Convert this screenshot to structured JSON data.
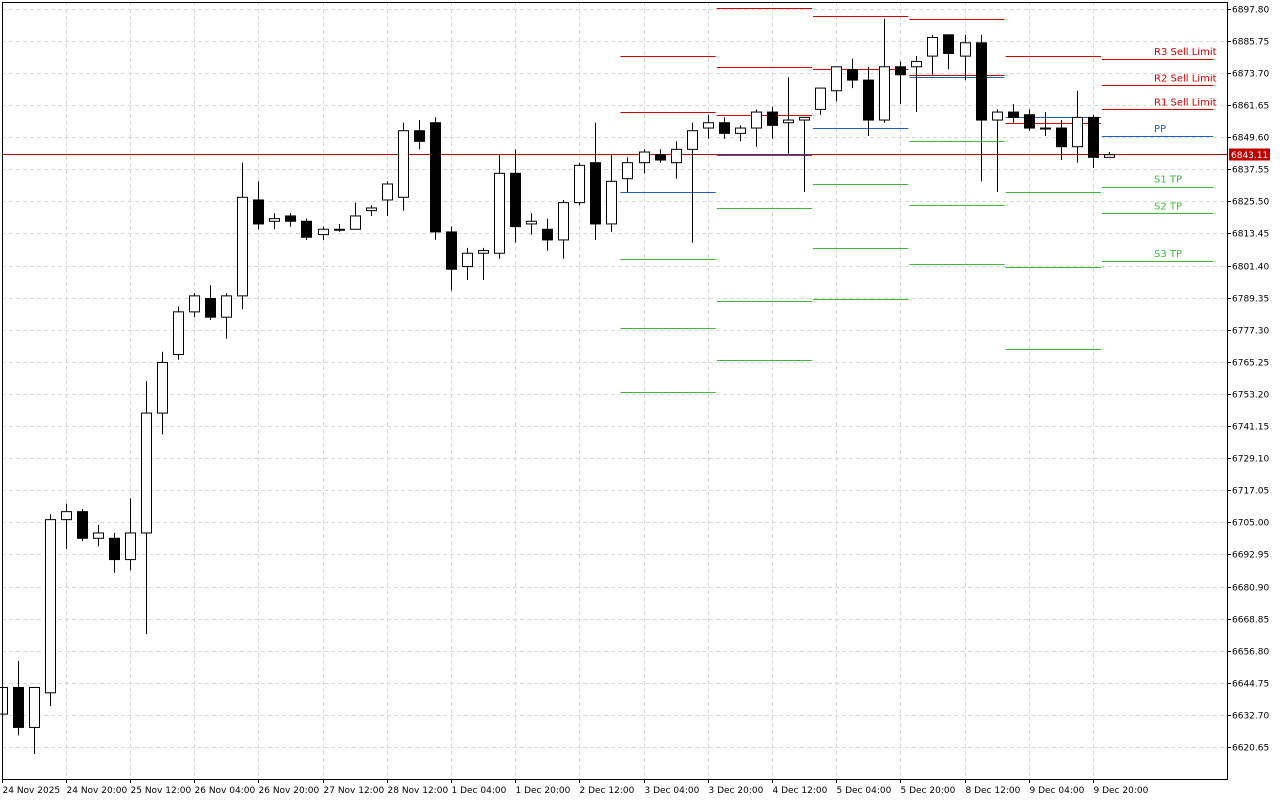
{
  "chart_data": {
    "type": "candlestick",
    "grid": true,
    "ylim": [
      6614.6,
      6903.9
    ],
    "y_ticks": [
      "6897.80",
      "6885.75",
      "6873.70",
      "6861.65",
      "6849.60",
      "6837.55",
      "6825.50",
      "6813.45",
      "6801.40",
      "6789.35",
      "6777.30",
      "6765.25",
      "6753.20",
      "6741.15",
      "6729.10",
      "6717.05",
      "6705.00",
      "6692.95",
      "6680.90",
      "6668.85",
      "6656.80",
      "6644.75",
      "6632.70",
      "6620.65"
    ],
    "x_ticks": [
      "24 Nov 2025",
      "24 Nov 20:00",
      "25 Nov 12:00",
      "26 Nov 04:00",
      "26 Nov 20:00",
      "27 Nov 12:00",
      "28 Nov 12:00",
      "1 Dec 04:00",
      "1 Dec 20:00",
      "2 Dec 12:00",
      "3 Dec 04:00",
      "3 Dec 20:00",
      "4 Dec 12:00",
      "5 Dec 04:00",
      "5 Dec 20:00",
      "8 Dec 12:00",
      "9 Dec 04:00",
      "9 Dec 20:00"
    ],
    "current_price": {
      "value": 6843.11,
      "label": "6843.11",
      "color": "#c00000"
    },
    "colors": {
      "bull_body": "#ffffff",
      "bear_body": "#000000",
      "wick": "#000000",
      "resistance": "#d00000",
      "pivot": "#1f5fbf",
      "support": "#3cb83c"
    },
    "candles": [
      {
        "o": 6633.0,
        "h": 6648.0,
        "l": 6626.0,
        "c": 6643.0
      },
      {
        "o": 6643.0,
        "h": 6653.0,
        "l": 6625.0,
        "c": 6628.0
      },
      {
        "o": 6628.0,
        "h": 6642.0,
        "l": 6618.0,
        "c": 6643.0
      },
      {
        "o": 6641.0,
        "h": 6708.0,
        "l": 6636.0,
        "c": 6706.0
      },
      {
        "o": 6706.0,
        "h": 6712.0,
        "l": 6695.0,
        "c": 6709.0
      },
      {
        "o": 6709.0,
        "h": 6710.0,
        "l": 6698.0,
        "c": 6699.0
      },
      {
        "o": 6699.0,
        "h": 6704.0,
        "l": 6696.0,
        "c": 6701.0
      },
      {
        "o": 6699.0,
        "h": 6701.0,
        "l": 6686.0,
        "c": 6691.0
      },
      {
        "o": 6691.0,
        "h": 6714.0,
        "l": 6687.0,
        "c": 6701.0
      },
      {
        "o": 6701.0,
        "h": 6758.0,
        "l": 6663.0,
        "c": 6746.0
      },
      {
        "o": 6746.0,
        "h": 6769.0,
        "l": 6738.0,
        "c": 6765.0
      },
      {
        "o": 6768.0,
        "h": 6786.0,
        "l": 6766.0,
        "c": 6784.0
      },
      {
        "o": 6784.0,
        "h": 6791.0,
        "l": 6782.0,
        "c": 6790.0
      },
      {
        "o": 6789.0,
        "h": 6794.0,
        "l": 6781.0,
        "c": 6782.0
      },
      {
        "o": 6782.0,
        "h": 6791.0,
        "l": 6774.0,
        "c": 6790.0
      },
      {
        "o": 6790.0,
        "h": 6840.0,
        "l": 6785.0,
        "c": 6827.0
      },
      {
        "o": 6826.0,
        "h": 6833.0,
        "l": 6815.0,
        "c": 6817.0
      },
      {
        "o": 6818.0,
        "h": 6821.0,
        "l": 6815.0,
        "c": 6819.0
      },
      {
        "o": 6820.0,
        "h": 6821.0,
        "l": 6816.0,
        "c": 6818.0
      },
      {
        "o": 6818.0,
        "h": 6819.0,
        "l": 6811.0,
        "c": 6812.0
      },
      {
        "o": 6813.0,
        "h": 6816.0,
        "l": 6811.0,
        "c": 6815.0
      },
      {
        "o": 6815.0,
        "h": 6817.0,
        "l": 6814.0,
        "c": 6815.0
      },
      {
        "o": 6815.0,
        "h": 6825.0,
        "l": 6815.0,
        "c": 6820.0
      },
      {
        "o": 6822.0,
        "h": 6824.0,
        "l": 6820.0,
        "c": 6823.0
      },
      {
        "o": 6826.0,
        "h": 6833.0,
        "l": 6820.0,
        "c": 6832.0
      },
      {
        "o": 6827.0,
        "h": 6855.0,
        "l": 6822.0,
        "c": 6852.0
      },
      {
        "o": 6852.0,
        "h": 6856.0,
        "l": 6845.0,
        "c": 6848.0
      },
      {
        "o": 6855.0,
        "h": 6857.0,
        "l": 6811.0,
        "c": 6814.0
      },
      {
        "o": 6814.0,
        "h": 6816.0,
        "l": 6792.0,
        "c": 6800.0
      },
      {
        "o": 6801.0,
        "h": 6808.0,
        "l": 6796.0,
        "c": 6806.0
      },
      {
        "o": 6806.0,
        "h": 6808.0,
        "l": 6796.0,
        "c": 6807.0
      },
      {
        "o": 6806.0,
        "h": 6843.0,
        "l": 6804.0,
        "c": 6836.0
      },
      {
        "o": 6836.0,
        "h": 6845.0,
        "l": 6810.0,
        "c": 6816.0
      },
      {
        "o": 6817.0,
        "h": 6821.0,
        "l": 6813.0,
        "c": 6818.0
      },
      {
        "o": 6815.0,
        "h": 6819.0,
        "l": 6807.0,
        "c": 6811.0
      },
      {
        "o": 6811.0,
        "h": 6826.0,
        "l": 6804.0,
        "c": 6825.0
      },
      {
        "o": 6825.0,
        "h": 6840.0,
        "l": 6824.0,
        "c": 6839.0
      },
      {
        "o": 6840.0,
        "h": 6855.0,
        "l": 6811.0,
        "c": 6817.0
      },
      {
        "o": 6817.0,
        "h": 6843.0,
        "l": 6814.0,
        "c": 6833.0
      },
      {
        "o": 6834.0,
        "h": 6842.0,
        "l": 6829.0,
        "c": 6840.0
      },
      {
        "o": 6840.0,
        "h": 6845.0,
        "l": 6836.0,
        "c": 6844.0
      },
      {
        "o": 6843.0,
        "h": 6845.0,
        "l": 6840.0,
        "c": 6841.0
      },
      {
        "o": 6840.0,
        "h": 6848.0,
        "l": 6834.0,
        "c": 6845.0
      },
      {
        "o": 6845.0,
        "h": 6855.0,
        "l": 6810.0,
        "c": 6852.0
      },
      {
        "o": 6853.0,
        "h": 6858.0,
        "l": 6849.0,
        "c": 6855.0
      },
      {
        "o": 6855.0,
        "h": 6857.0,
        "l": 6849.0,
        "c": 6851.0
      },
      {
        "o": 6851.0,
        "h": 6854.0,
        "l": 6848.0,
        "c": 6853.0
      },
      {
        "o": 6853.0,
        "h": 6860.0,
        "l": 6846.0,
        "c": 6859.0
      },
      {
        "o": 6859.0,
        "h": 6861.0,
        "l": 6849.0,
        "c": 6854.0
      },
      {
        "o": 6855.0,
        "h": 6872.0,
        "l": 6843.0,
        "c": 6856.0
      },
      {
        "o": 6856.0,
        "h": 6857.0,
        "l": 6829.0,
        "c": 6857.0
      },
      {
        "o": 6860.0,
        "h": 6868.0,
        "l": 6858.0,
        "c": 6868.0
      },
      {
        "o": 6867.0,
        "h": 6875.0,
        "l": 6863.0,
        "c": 6876.0
      },
      {
        "o": 6875.0,
        "h": 6879.0,
        "l": 6868.0,
        "c": 6871.0
      },
      {
        "o": 6871.0,
        "h": 6876.0,
        "l": 6850.0,
        "c": 6856.0
      },
      {
        "o": 6856.0,
        "h": 6894.0,
        "l": 6855.0,
        "c": 6876.0
      },
      {
        "o": 6876.0,
        "h": 6878.0,
        "l": 6862.0,
        "c": 6873.0
      },
      {
        "o": 6876.0,
        "h": 6880.0,
        "l": 6859.0,
        "c": 6878.0
      },
      {
        "o": 6880.0,
        "h": 6888.0,
        "l": 6873.0,
        "c": 6887.0
      },
      {
        "o": 6888.0,
        "h": 6888.0,
        "l": 6875.0,
        "c": 6881.0
      },
      {
        "o": 6880.0,
        "h": 6888.0,
        "l": 6871.0,
        "c": 6885.0
      },
      {
        "o": 6885.0,
        "h": 6888.0,
        "l": 6833.0,
        "c": 6856.0
      },
      {
        "o": 6856.0,
        "h": 6860.0,
        "l": 6829.0,
        "c": 6859.0
      },
      {
        "o": 6859.0,
        "h": 6862.0,
        "l": 6855.0,
        "c": 6857.0
      },
      {
        "o": 6858.0,
        "h": 6860.0,
        "l": 6852.0,
        "c": 6853.0
      },
      {
        "o": 6853.0,
        "h": 6859.0,
        "l": 6850.0,
        "c": 6853.0
      },
      {
        "o": 6853.0,
        "h": 6856.0,
        "l": 6841.0,
        "c": 6846.0
      },
      {
        "o": 6846.0,
        "h": 6867.0,
        "l": 6840.0,
        "c": 6857.0
      },
      {
        "o": 6857.0,
        "h": 6858.0,
        "l": 6838.0,
        "c": 6842.0
      },
      {
        "o": 6842.0,
        "h": 6844.0,
        "l": 6842.0,
        "c": 6843.0
      }
    ],
    "levels": [
      {
        "from": 39,
        "to": 44,
        "r3": 6880,
        "r2": 6859,
        "pp": 6829,
        "s1": 6804,
        "s2": 6778,
        "s3": 6754
      },
      {
        "from": 45,
        "to": 50,
        "r3": 6898,
        "r2": 6876,
        "r1": 6858,
        "pp": 6843,
        "s1": 6823,
        "s2": 6788,
        "s3": 6766
      },
      {
        "from": 51,
        "to": 56,
        "r3": 6895,
        "r2": 6875,
        "pp": 6853,
        "s1": 6832,
        "s2": 6808,
        "s3": 6789
      },
      {
        "from": 57,
        "to": 62,
        "r3": 6894,
        "r2": 6873,
        "pp": 6872,
        "s1": 6848,
        "s2": 6824,
        "s3": 6802
      },
      {
        "from": 63,
        "to": 68,
        "r3": 6880,
        "r2": 6855,
        "pp": 6857,
        "s1": 6829,
        "s2": 6801,
        "s3": 6770
      },
      {
        "from": 69,
        "to": 75,
        "r3": 6879,
        "r2": 6869,
        "r1": 6860,
        "pp": 6850,
        "s1": 6831,
        "s2": 6821,
        "s3": 6803
      }
    ],
    "level_labels": [
      {
        "key": "r3",
        "text": "R3 Sell Limit",
        "kind": "resistance"
      },
      {
        "key": "r2",
        "text": "R2 Sell Limit",
        "kind": "resistance"
      },
      {
        "key": "r1",
        "text": "R1 Sell Limit",
        "kind": "resistance"
      },
      {
        "key": "pp",
        "text": "PP",
        "kind": "pivot"
      },
      {
        "key": "s1",
        "text": "S1 TP",
        "kind": "support"
      },
      {
        "key": "s2",
        "text": "S2 TP",
        "kind": "support"
      },
      {
        "key": "s3",
        "text": "S3 TP",
        "kind": "support"
      }
    ]
  }
}
